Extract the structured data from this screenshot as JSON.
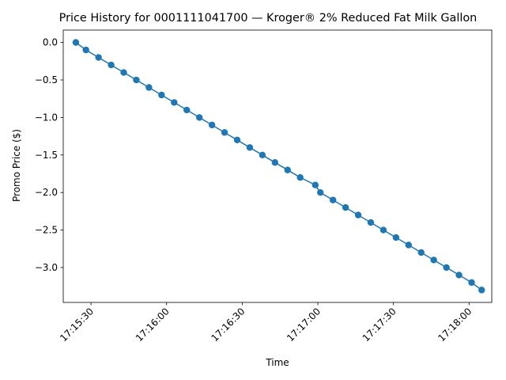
{
  "chart_data": {
    "type": "line",
    "title": "Price History for 0001111041700 — Kroger® 2% Reduced Fat Milk Gallon",
    "xlabel": "Time",
    "ylabel": "Promo Price ($)",
    "x_ticks": [
      "17:15:30",
      "17:16:00",
      "17:16:30",
      "17:17:00",
      "17:17:30",
      "17:18:00"
    ],
    "y_ticks": [
      "0.0",
      "−0.5",
      "−1.0",
      "−1.5",
      "−2.0",
      "−2.5",
      "−3.0"
    ],
    "xlim": [
      "17:15:19",
      "17:18:09"
    ],
    "ylim": [
      -3.465,
      0.165
    ],
    "grid": false,
    "color": "#1f77b4",
    "series": [
      {
        "x": [
          "17:15:24",
          "17:15:28",
          "17:15:33",
          "17:15:38",
          "17:15:43",
          "17:15:48",
          "17:15:53",
          "17:15:58",
          "17:16:03",
          "17:16:08",
          "17:16:13",
          "17:16:18",
          "17:16:23",
          "17:16:28",
          "17:16:33",
          "17:16:38",
          "17:16:43",
          "17:16:48",
          "17:16:53",
          "17:16:59",
          "17:17:01",
          "17:17:06",
          "17:17:11",
          "17:17:16",
          "17:17:21",
          "17:17:26",
          "17:17:31",
          "17:17:36",
          "17:17:41",
          "17:17:46",
          "17:17:51",
          "17:17:56",
          "17:18:01",
          "17:18:05"
        ],
        "values": [
          0.0,
          -0.1,
          -0.2,
          -0.3,
          -0.4,
          -0.5,
          -0.6,
          -0.7,
          -0.8,
          -0.9,
          -1.0,
          -1.1,
          -1.2,
          -1.3,
          -1.4,
          -1.5,
          -1.6,
          -1.7,
          -1.8,
          -1.9,
          -2.0,
          -2.1,
          -2.2,
          -2.3,
          -2.4,
          -2.5,
          -2.6,
          -2.7,
          -2.8,
          -2.9,
          -3.0,
          -3.1,
          -3.2,
          -3.3
        ]
      }
    ]
  }
}
